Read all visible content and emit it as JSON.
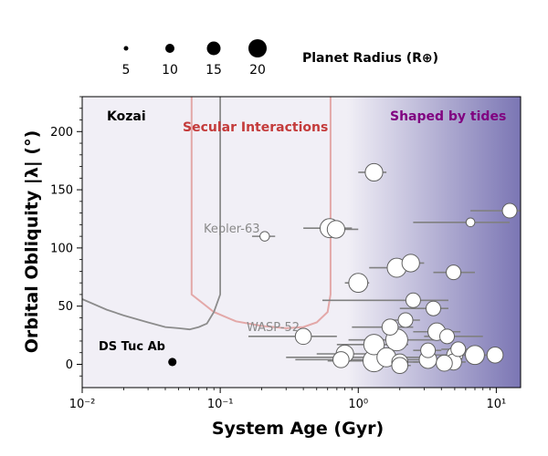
{
  "chart_data": {
    "type": "scatter",
    "xlabel": "System Age (Gyr)",
    "ylabel": "Orbital Obliquity |λ| (°)",
    "xscale": "log",
    "xlim": [
      0.01,
      15
    ],
    "ylim": [
      -20,
      230
    ],
    "x_ticks": [
      {
        "value": 0.01,
        "label": "10⁻²"
      },
      {
        "value": 0.1,
        "label": "10⁻¹"
      },
      {
        "value": 1,
        "label": "10⁰"
      },
      {
        "value": 10,
        "label": "10¹"
      }
    ],
    "y_ticks": [
      0,
      50,
      100,
      150,
      200
    ],
    "legend": {
      "title": "Planet Radius (R⊕)",
      "placement": "top",
      "entries": [
        {
          "label": "5",
          "radius": 5
        },
        {
          "label": "10",
          "radius": 10
        },
        {
          "label": "15",
          "radius": 15
        },
        {
          "label": "20",
          "radius": 20
        }
      ]
    },
    "region_labels": {
      "kozai": "Kozai",
      "secular": "Secular Interactions",
      "tides": "Shaped by tides"
    },
    "system_labels": {
      "kepler63": "Kepler-63",
      "wasp52": "WASP-52",
      "dstuc": "DS Tuc Ab"
    },
    "colors": {
      "background": "#f1eff6",
      "tide_gradient_end": "#7b76b4",
      "kozai_curve": "#8c8c8c",
      "secular_curve": "#e3a8a8",
      "secular_label": "#c43b3b",
      "tides_label": "#800080",
      "errorbar": "#808080",
      "marker_face": "#ffffff",
      "marker_edge": "#606060",
      "highlight": "#000000"
    },
    "kozai_curve": [
      [
        0.01,
        56
      ],
      [
        0.015,
        47
      ],
      [
        0.02,
        42
      ],
      [
        0.03,
        36
      ],
      [
        0.04,
        32
      ],
      [
        0.05,
        31
      ],
      [
        0.06,
        30
      ],
      [
        0.07,
        32
      ],
      [
        0.08,
        35
      ],
      [
        0.09,
        45
      ],
      [
        0.1,
        60
      ],
      [
        0.1,
        230
      ]
    ],
    "secular_curve": [
      [
        0.062,
        230
      ],
      [
        0.062,
        60
      ],
      [
        0.09,
        45
      ],
      [
        0.13,
        37
      ],
      [
        0.2,
        33
      ],
      [
        0.3,
        31
      ],
      [
        0.4,
        32
      ],
      [
        0.5,
        36
      ],
      [
        0.6,
        45
      ],
      [
        0.63,
        60
      ],
      [
        0.63,
        230
      ]
    ],
    "highlight_point": {
      "name": "DS Tuc Ab",
      "age": 0.045,
      "obliquity": 2,
      "radius": 5.7
    },
    "series": [
      {
        "name": "planets",
        "points": [
          {
            "age": 1.3,
            "age_lo": 1.0,
            "age_hi": 1.6,
            "obliquity": 165,
            "radius": 12
          },
          {
            "age": 12.5,
            "age_lo": 6.5,
            "age_hi": 15,
            "obliquity": 132,
            "radius": 10
          },
          {
            "age": 6.5,
            "age_lo": 2.5,
            "age_hi": 12.5,
            "obliquity": 122,
            "radius": 6
          },
          {
            "age": 0.21,
            "age_lo": 0.17,
            "age_hi": 0.25,
            "obliquity": 110,
            "radius": 6.5
          },
          {
            "age": 0.62,
            "age_lo": 0.4,
            "age_hi": 0.9,
            "obliquity": 117,
            "radius": 13
          },
          {
            "age": 0.69,
            "age_lo": 0.55,
            "age_hi": 1.0,
            "obliquity": 116,
            "radius": 12
          },
          {
            "age": 2.4,
            "age_lo": 1.9,
            "age_hi": 3.0,
            "obliquity": 87,
            "radius": 12
          },
          {
            "age": 1.9,
            "age_lo": 1.2,
            "age_hi": 2.5,
            "obliquity": 83,
            "radius": 13
          },
          {
            "age": 4.9,
            "age_lo": 3.5,
            "age_hi": 7.0,
            "obliquity": 79,
            "radius": 10
          },
          {
            "age": 1.0,
            "age_lo": 0.8,
            "age_hi": 1.2,
            "obliquity": 70,
            "radius": 13
          },
          {
            "age": 2.5,
            "age_lo": 0.55,
            "age_hi": 4.5,
            "obliquity": 55,
            "radius": 10
          },
          {
            "age": 3.5,
            "age_lo": 2.0,
            "age_hi": 4.5,
            "obliquity": 48,
            "radius": 10
          },
          {
            "age": 2.2,
            "age_lo": 1.6,
            "age_hi": 2.8,
            "obliquity": 38,
            "radius": 10
          },
          {
            "age": 1.7,
            "age_lo": 0.9,
            "age_hi": 2.5,
            "obliquity": 32,
            "radius": 11
          },
          {
            "age": 0.4,
            "age_lo": 0.16,
            "age_hi": 0.7,
            "obliquity": 24,
            "radius": 11
          },
          {
            "age": 3.7,
            "age_lo": 2.5,
            "age_hi": 5.5,
            "obliquity": 28,
            "radius": 12
          },
          {
            "age": 4.4,
            "age_lo": 3.0,
            "age_hi": 8.0,
            "obliquity": 24,
            "radius": 10
          },
          {
            "age": 1.9,
            "age_lo": 0.85,
            "age_hi": 3.5,
            "obliquity": 21,
            "radius": 15
          },
          {
            "age": 1.3,
            "age_lo": 0.7,
            "age_hi": 2.3,
            "obliquity": 17,
            "radius": 14
          },
          {
            "age": 5.3,
            "age_lo": 4.0,
            "age_hi": 6.5,
            "obliquity": 13,
            "radius": 10
          },
          {
            "age": 3.2,
            "age_lo": 2.5,
            "age_hi": 4.0,
            "obliquity": 12,
            "radius": 10
          },
          {
            "age": 0.8,
            "age_lo": 0.5,
            "age_hi": 1.3,
            "obliquity": 9,
            "radius": 12
          },
          {
            "age": 9.8,
            "age_lo": 8.0,
            "age_hi": 11.0,
            "obliquity": 8,
            "radius": 11
          },
          {
            "age": 7.0,
            "age_lo": 5.0,
            "age_hi": 9.0,
            "obliquity": 8,
            "radius": 13
          },
          {
            "age": 5.0,
            "age_lo": 3.5,
            "age_hi": 6.5,
            "obliquity": 8,
            "radius": 11
          },
          {
            "age": 1.6,
            "age_lo": 0.3,
            "age_hi": 3.0,
            "obliquity": 6,
            "radius": 13
          },
          {
            "age": 0.75,
            "age_lo": 0.35,
            "age_hi": 1.3,
            "obliquity": 4,
            "radius": 11
          },
          {
            "age": 3.2,
            "age_lo": 2.0,
            "age_hi": 4.5,
            "obliquity": 4,
            "radius": 12
          },
          {
            "age": 1.3,
            "age_lo": 0.6,
            "age_hi": 2.2,
            "obliquity": 3,
            "radius": 15
          },
          {
            "age": 2.0,
            "age_lo": 1.5,
            "age_hi": 2.7,
            "obliquity": 2,
            "radius": 11
          },
          {
            "age": 4.9,
            "age_lo": 2.5,
            "age_hi": 6.0,
            "obliquity": 2,
            "radius": 11
          },
          {
            "age": 4.2,
            "age_lo": 3.0,
            "age_hi": 5.5,
            "obliquity": 1,
            "radius": 11
          },
          {
            "age": 2.0,
            "age_lo": 1.7,
            "age_hi": 2.4,
            "obliquity": -1,
            "radius": 11
          }
        ]
      }
    ]
  }
}
